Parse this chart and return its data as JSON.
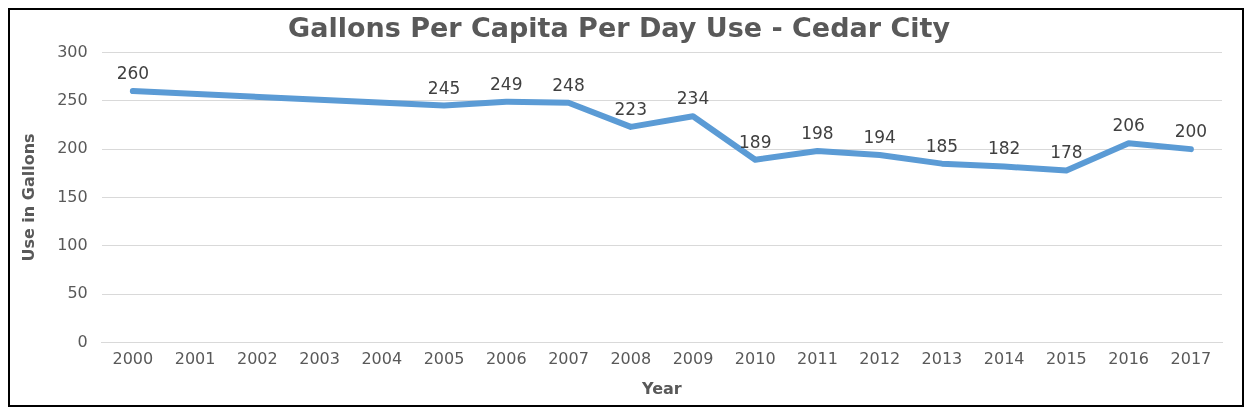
{
  "chart_data": {
    "type": "line",
    "title": "Gallons Per Capita Per Day Use - Cedar City",
    "xlabel": "Year",
    "ylabel": "Use in Gallons",
    "categories": [
      "2000",
      "2001",
      "2002",
      "2003",
      "2004",
      "2005",
      "2006",
      "2007",
      "2008",
      "2009",
      "2010",
      "2011",
      "2012",
      "2013",
      "2014",
      "2015",
      "2016",
      "2017"
    ],
    "series": [
      {
        "color": "#5b9bd5",
        "values": [
          260,
          null,
          null,
          null,
          null,
          245,
          249,
          248,
          223,
          234,
          189,
          198,
          194,
          185,
          182,
          178,
          206,
          200
        ]
      }
    ],
    "ylim": [
      0,
      300
    ],
    "yticks": [
      0,
      50,
      100,
      150,
      200,
      250,
      300
    ],
    "grid": "y",
    "legend": false,
    "marker": "none",
    "line_style": "solid",
    "data_labels": true
  }
}
